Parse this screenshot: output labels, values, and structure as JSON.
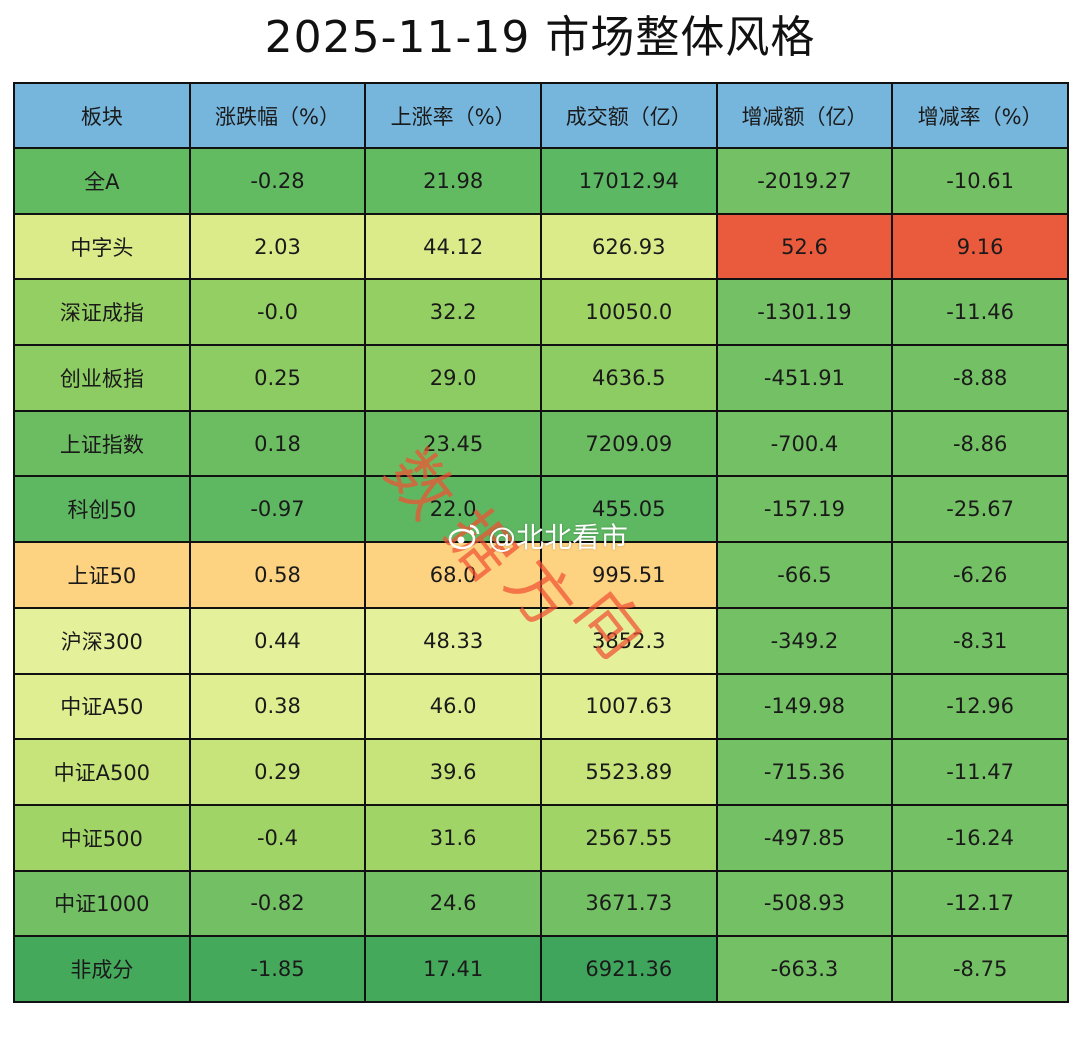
{
  "title": "2025-11-19 市场整体风格",
  "columns": [
    "板块",
    "涨跌幅（%）",
    "上涨率（%）",
    "成交额（亿）",
    "增减额（亿）",
    "增减率（%）"
  ],
  "rows": [
    {
      "name": "全A",
      "cells": [
        "-0.28",
        "21.98",
        "17012.94",
        "-2019.27",
        "-10.61"
      ],
      "colors": [
        "#62bb60",
        "#62bb60",
        "#62bb60",
        "#5db863",
        "#74c064",
        "#74c064"
      ]
    },
    {
      "name": "中字头",
      "cells": [
        "2.03",
        "44.12",
        "626.93",
        "52.6",
        "9.16"
      ],
      "colors": [
        "#dceb8a",
        "#dceb8a",
        "#dceb8a",
        "#dceb8a",
        "#ea5a3c",
        "#ea5a3c"
      ]
    },
    {
      "name": "深证成指",
      "cells": [
        "-0.0",
        "32.2",
        "10050.0",
        "-1301.19",
        "-11.46"
      ],
      "colors": [
        "#94cf63",
        "#94cf63",
        "#94cf63",
        "#9fd465",
        "#74c064",
        "#74c064"
      ]
    },
    {
      "name": "创业板指",
      "cells": [
        "0.25",
        "29.0",
        "4636.5",
        "-451.91",
        "-8.88"
      ],
      "colors": [
        "#8ccc62",
        "#8ccc62",
        "#8ccc62",
        "#8ccc62",
        "#74c064",
        "#74c064"
      ]
    },
    {
      "name": "上证指数",
      "cells": [
        "0.18",
        "23.45",
        "7209.09",
        "-700.4",
        "-8.86"
      ],
      "colors": [
        "#6cbd61",
        "#6cbd61",
        "#6cbd61",
        "#6cbd61",
        "#74c064",
        "#74c064"
      ]
    },
    {
      "name": "科创50",
      "cells": [
        "-0.97",
        "22.0",
        "455.05",
        "-157.19",
        "-25.67"
      ],
      "colors": [
        "#5eb862",
        "#5eb862",
        "#5eb862",
        "#5eb862",
        "#74c064",
        "#74c064"
      ]
    },
    {
      "name": "上证50",
      "cells": [
        "0.58",
        "68.0",
        "995.51",
        "-66.5",
        "-6.26"
      ],
      "colors": [
        "#fdd280",
        "#fdd280",
        "#fdd280",
        "#fdd280",
        "#74c064",
        "#74c064"
      ]
    },
    {
      "name": "沪深300",
      "cells": [
        "0.44",
        "48.33",
        "3852.3",
        "-349.2",
        "-8.31"
      ],
      "colors": [
        "#e5f19a",
        "#e5f19a",
        "#e5f19a",
        "#e5f19a",
        "#74c064",
        "#74c064"
      ]
    },
    {
      "name": "中证A50",
      "cells": [
        "0.38",
        "46.0",
        "1007.63",
        "-149.98",
        "-12.96"
      ],
      "colors": [
        "#dfee90",
        "#dfee90",
        "#dfee90",
        "#dfee90",
        "#74c064",
        "#74c064"
      ]
    },
    {
      "name": "中证A500",
      "cells": [
        "0.29",
        "39.6",
        "5523.89",
        "-715.36",
        "-11.47"
      ],
      "colors": [
        "#c6e47a",
        "#c6e47a",
        "#c6e47a",
        "#c6e47a",
        "#74c064",
        "#74c064"
      ]
    },
    {
      "name": "中证500",
      "cells": [
        "-0.4",
        "31.6",
        "2567.55",
        "-497.85",
        "-16.24"
      ],
      "colors": [
        "#a0d466",
        "#a0d466",
        "#a0d466",
        "#a0d466",
        "#74c064",
        "#74c064"
      ]
    },
    {
      "name": "中证1000",
      "cells": [
        "-0.82",
        "24.6",
        "3671.73",
        "-508.93",
        "-12.17"
      ],
      "colors": [
        "#72c063",
        "#72c063",
        "#72c063",
        "#72c063",
        "#74c064",
        "#74c064"
      ]
    },
    {
      "name": "非成分",
      "cells": [
        "-1.85",
        "17.41",
        "6921.36",
        "-663.3",
        "-8.75"
      ],
      "colors": [
        "#45a95c",
        "#45a95c",
        "#45a95c",
        "#3fa55d",
        "#74c064",
        "#74c064"
      ]
    }
  ],
  "header_color": "#76b5dc",
  "watermark": {
    "stamp_text": "数据方向",
    "handle": "@北北看市"
  },
  "chart_data": {
    "type": "table",
    "title": "2025-11-19 市场整体风格",
    "columns": [
      "板块",
      "涨跌幅（%）",
      "上涨率（%）",
      "成交额（亿）",
      "增减额（亿）",
      "增减率（%）"
    ],
    "rows": [
      [
        "全A",
        -0.28,
        21.98,
        17012.94,
        -2019.27,
        -10.61
      ],
      [
        "中字头",
        2.03,
        44.12,
        626.93,
        52.6,
        9.16
      ],
      [
        "深证成指",
        -0.0,
        32.2,
        10050.0,
        -1301.19,
        -11.46
      ],
      [
        "创业板指",
        0.25,
        29.0,
        4636.5,
        -451.91,
        -8.88
      ],
      [
        "上证指数",
        0.18,
        23.45,
        7209.09,
        -700.4,
        -8.86
      ],
      [
        "科创50",
        -0.97,
        22.0,
        455.05,
        -157.19,
        -25.67
      ],
      [
        "上证50",
        0.58,
        68.0,
        995.51,
        -66.5,
        -6.26
      ],
      [
        "沪深300",
        0.44,
        48.33,
        3852.3,
        -349.2,
        -8.31
      ],
      [
        "中证A50",
        0.38,
        46.0,
        1007.63,
        -149.98,
        -12.96
      ],
      [
        "中证A500",
        0.29,
        39.6,
        5523.89,
        -715.36,
        -11.47
      ],
      [
        "中证500",
        -0.4,
        31.6,
        2567.55,
        -497.85,
        -16.24
      ],
      [
        "中证1000",
        -0.82,
        24.6,
        3671.73,
        -508.93,
        -12.17
      ],
      [
        "非成分",
        -1.85,
        17.41,
        6921.36,
        -663.3,
        -8.75
      ]
    ],
    "color_scale": "heatmap green (low) → yellow → orange → red (high)"
  }
}
